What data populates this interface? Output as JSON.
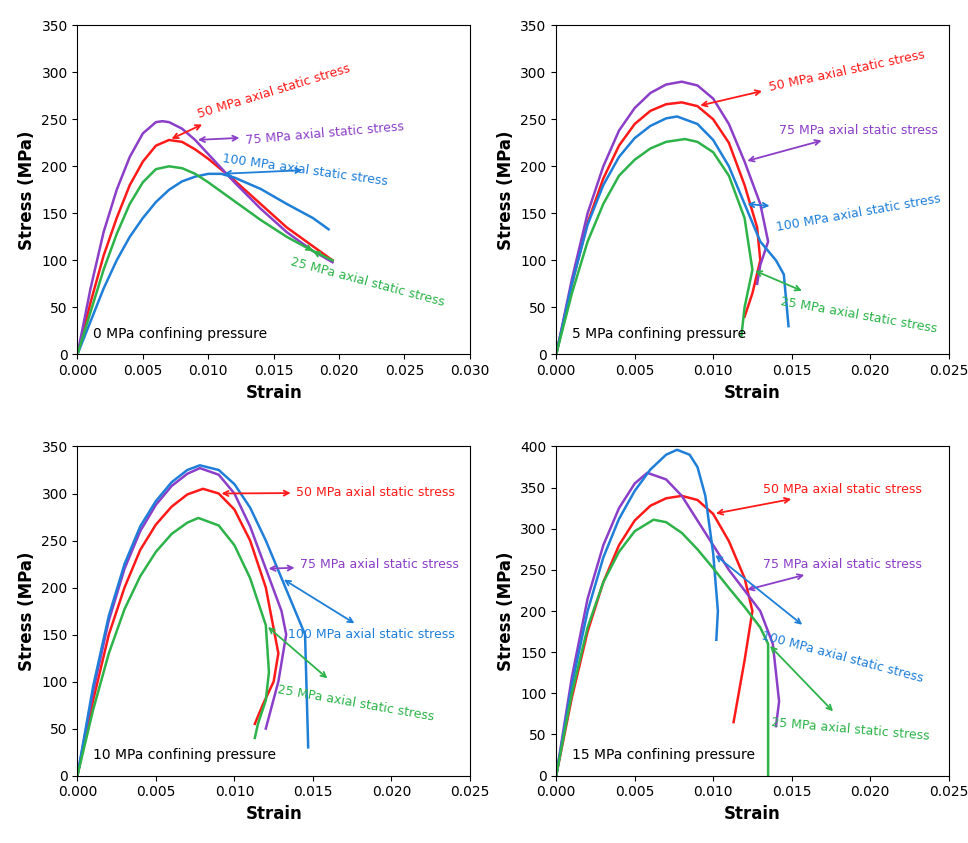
{
  "chart_data": [
    {
      "type": "line",
      "title": "0 MPa confining pressure",
      "x_label": "Strain",
      "y_label": "Stress (MPa)",
      "xlim": [
        0,
        0.03
      ],
      "xticks": [
        {
          "value": 0,
          "label": "0.000"
        },
        {
          "value": 0.005,
          "label": "0.005"
        },
        {
          "value": 0.01,
          "label": "0.010"
        },
        {
          "value": 0.015,
          "label": "0.015"
        },
        {
          "value": 0.02,
          "label": "0.020"
        },
        {
          "value": 0.025,
          "label": "0.025"
        },
        {
          "value": 0.03,
          "label": "0.030"
        }
      ],
      "ylim": [
        0,
        350
      ],
      "yticks": [
        0,
        50,
        100,
        150,
        200,
        250,
        300,
        350
      ],
      "series": [
        {
          "name": "50 MPa axial static stress",
          "color": "#ff1a1a",
          "x": [
            0,
            0.001,
            0.002,
            0.003,
            0.004,
            0.005,
            0.006,
            0.007,
            0.008,
            0.009,
            0.01,
            0.012,
            0.014,
            0.016,
            0.018,
            0.0195
          ],
          "values": [
            0,
            55,
            105,
            145,
            180,
            205,
            222,
            228,
            226,
            218,
            208,
            185,
            160,
            135,
            115,
            100
          ]
        },
        {
          "name": "75 MPa axial static stress",
          "color": "#8b3fc8",
          "x": [
            0,
            0.001,
            0.002,
            0.003,
            0.004,
            0.005,
            0.006,
            0.0065,
            0.007,
            0.008,
            0.009,
            0.01,
            0.012,
            0.014,
            0.016,
            0.018,
            0.0195
          ],
          "values": [
            0,
            70,
            130,
            175,
            210,
            235,
            247,
            248,
            247,
            240,
            228,
            213,
            183,
            155,
            130,
            110,
            98
          ]
        },
        {
          "name": "100 MPa axial static stress",
          "color": "#1f7fd8",
          "x": [
            0,
            0.001,
            0.002,
            0.003,
            0.004,
            0.005,
            0.006,
            0.007,
            0.008,
            0.009,
            0.01,
            0.011,
            0.012,
            0.014,
            0.016,
            0.018,
            0.0192
          ],
          "values": [
            0,
            35,
            70,
            100,
            125,
            145,
            162,
            175,
            184,
            189,
            192,
            192,
            188,
            176,
            160,
            145,
            133
          ]
        },
        {
          "name": "25 MPa axial static stress",
          "color": "#2db34a",
          "x": [
            0,
            0.001,
            0.002,
            0.003,
            0.004,
            0.005,
            0.006,
            0.007,
            0.008,
            0.009,
            0.01,
            0.012,
            0.014,
            0.016,
            0.018,
            0.0195
          ],
          "values": [
            0,
            45,
            90,
            128,
            160,
            183,
            197,
            200,
            198,
            192,
            183,
            163,
            143,
            125,
            110,
            100
          ]
        }
      ]
    },
    {
      "type": "line",
      "title": "5 MPa confining pressure",
      "x_label": "Strain",
      "y_label": "Stress (MPa)",
      "xlim": [
        0,
        0.025
      ],
      "xticks": [
        {
          "value": 0,
          "label": "0.000"
        },
        {
          "value": 0.005,
          "label": "0.005"
        },
        {
          "value": 0.01,
          "label": "0.010"
        },
        {
          "value": 0.015,
          "label": "0.015"
        },
        {
          "value": 0.02,
          "label": "0.020"
        },
        {
          "value": 0.025,
          "label": "0.025"
        }
      ],
      "ylim": [
        0,
        350
      ],
      "yticks": [
        0,
        50,
        100,
        150,
        200,
        250,
        300,
        350
      ],
      "series": [
        {
          "name": "50 MPa axial static stress",
          "color": "#ff1a1a",
          "x": [
            0,
            0.001,
            0.002,
            0.003,
            0.004,
            0.005,
            0.006,
            0.007,
            0.008,
            0.009,
            0.01,
            0.011,
            0.012,
            0.0128,
            0.013,
            0.0125,
            0.012
          ],
          "values": [
            0,
            75,
            140,
            187,
            222,
            245,
            259,
            266,
            268,
            264,
            250,
            225,
            180,
            135,
            100,
            65,
            40
          ]
        },
        {
          "name": "75 MPa axial static stress",
          "color": "#8b3fc8",
          "x": [
            0,
            0.001,
            0.002,
            0.003,
            0.004,
            0.005,
            0.006,
            0.007,
            0.008,
            0.009,
            0.01,
            0.011,
            0.012,
            0.013,
            0.0135,
            0.013,
            0.0128
          ],
          "values": [
            0,
            80,
            150,
            200,
            238,
            262,
            278,
            287,
            290,
            286,
            272,
            245,
            205,
            160,
            120,
            95,
            75
          ]
        },
        {
          "name": "100 MPa axial static stress",
          "color": "#1f7fd8",
          "x": [
            0,
            0.001,
            0.002,
            0.003,
            0.004,
            0.005,
            0.006,
            0.007,
            0.0077,
            0.009,
            0.01,
            0.011,
            0.012,
            0.013,
            0.014,
            0.0145,
            0.0148
          ],
          "values": [
            0,
            75,
            138,
            180,
            210,
            230,
            243,
            251,
            253,
            245,
            228,
            200,
            160,
            120,
            100,
            85,
            30
          ]
        },
        {
          "name": "25 MPa axial static stress",
          "color": "#2db34a",
          "x": [
            0,
            0.001,
            0.002,
            0.003,
            0.004,
            0.005,
            0.006,
            0.007,
            0.0082,
            0.009,
            0.01,
            0.011,
            0.012,
            0.0125,
            0.012,
            0.0118
          ],
          "values": [
            0,
            65,
            120,
            160,
            190,
            207,
            219,
            226,
            229,
            226,
            215,
            190,
            145,
            90,
            50,
            20
          ]
        }
      ]
    },
    {
      "type": "line",
      "title": "10 MPa confining pressure",
      "x_label": "Strain",
      "y_label": "Stress (MPa)",
      "xlim": [
        0,
        0.025
      ],
      "xticks": [
        {
          "value": 0,
          "label": "0.000"
        },
        {
          "value": 0.005,
          "label": "0.005"
        },
        {
          "value": 0.01,
          "label": "0.010"
        },
        {
          "value": 0.015,
          "label": "0.015"
        },
        {
          "value": 0.02,
          "label": "0.020"
        },
        {
          "value": 0.025,
          "label": "0.025"
        }
      ],
      "ylim": [
        0,
        350
      ],
      "yticks": [
        0,
        50,
        100,
        150,
        200,
        250,
        300,
        350
      ],
      "series": [
        {
          "name": "50 MPa axial static stress",
          "color": "#ff1a1a",
          "x": [
            0,
            0.001,
            0.002,
            0.003,
            0.004,
            0.005,
            0.006,
            0.007,
            0.008,
            0.009,
            0.01,
            0.011,
            0.012,
            0.0128,
            0.0125,
            0.0118,
            0.0113
          ],
          "values": [
            0,
            80,
            150,
            200,
            240,
            267,
            286,
            299,
            305,
            300,
            283,
            250,
            200,
            130,
            100,
            75,
            55
          ]
        },
        {
          "name": "75 MPa axial static stress",
          "color": "#8b3fc8",
          "x": [
            0,
            0.001,
            0.002,
            0.003,
            0.004,
            0.005,
            0.006,
            0.007,
            0.0078,
            0.009,
            0.01,
            0.011,
            0.012,
            0.013,
            0.0133,
            0.0128,
            0.012
          ],
          "values": [
            0,
            90,
            165,
            220,
            260,
            288,
            308,
            321,
            327,
            320,
            300,
            265,
            220,
            175,
            150,
            100,
            50
          ]
        },
        {
          "name": "100 MPa axial static stress",
          "color": "#1f7fd8",
          "x": [
            0,
            0.001,
            0.002,
            0.003,
            0.004,
            0.005,
            0.006,
            0.007,
            0.0078,
            0.009,
            0.01,
            0.011,
            0.012,
            0.013,
            0.014,
            0.0145,
            0.0147
          ],
          "values": [
            0,
            95,
            170,
            225,
            265,
            292,
            312,
            325,
            330,
            325,
            310,
            285,
            250,
            210,
            170,
            150,
            30
          ]
        },
        {
          "name": "25 MPa axial static stress",
          "color": "#2db34a",
          "x": [
            0,
            0.001,
            0.002,
            0.003,
            0.004,
            0.005,
            0.006,
            0.007,
            0.0077,
            0.009,
            0.01,
            0.011,
            0.012,
            0.0122,
            0.012,
            0.0115,
            0.0113
          ],
          "values": [
            0,
            70,
            130,
            177,
            212,
            238,
            257,
            269,
            274,
            266,
            245,
            210,
            160,
            110,
            80,
            55,
            40
          ]
        }
      ]
    },
    {
      "type": "line",
      "title": "15 MPa confining pressure",
      "x_label": "Strain",
      "y_label": "Stress (MPa)",
      "xlim": [
        0,
        0.025
      ],
      "xticks": [
        {
          "value": 0,
          "label": "0.000"
        },
        {
          "value": 0.005,
          "label": "0.005"
        },
        {
          "value": 0.01,
          "label": "0.010"
        },
        {
          "value": 0.015,
          "label": "0.015"
        },
        {
          "value": 0.02,
          "label": "0.020"
        },
        {
          "value": 0.025,
          "label": "0.025"
        }
      ],
      "ylim": [
        0,
        400
      ],
      "yticks": [
        0,
        50,
        100,
        150,
        200,
        250,
        300,
        350,
        400
      ],
      "series": [
        {
          "name": "50 MPa axial static stress",
          "color": "#ff1a1a",
          "x": [
            0,
            0.001,
            0.002,
            0.003,
            0.004,
            0.005,
            0.006,
            0.007,
            0.008,
            0.009,
            0.01,
            0.011,
            0.012,
            0.0125,
            0.012,
            0.0113
          ],
          "values": [
            0,
            95,
            175,
            235,
            280,
            310,
            328,
            337,
            340,
            335,
            318,
            285,
            240,
            200,
            140,
            65
          ]
        },
        {
          "name": "75 MPa axial static stress",
          "color": "#8b3fc8",
          "x": [
            0,
            0.001,
            0.002,
            0.003,
            0.004,
            0.005,
            0.0058,
            0.007,
            0.008,
            0.009,
            0.01,
            0.011,
            0.012,
            0.013,
            0.0138,
            0.0142,
            0.014
          ],
          "values": [
            0,
            120,
            215,
            280,
            325,
            355,
            368,
            360,
            340,
            310,
            280,
            250,
            225,
            200,
            160,
            90,
            60
          ]
        },
        {
          "name": "100 MPa axial static stress",
          "color": "#1f7fd8",
          "x": [
            0,
            0.001,
            0.002,
            0.003,
            0.004,
            0.005,
            0.006,
            0.007,
            0.0077,
            0.0085,
            0.009,
            0.0095,
            0.01,
            0.0103,
            0.0102
          ],
          "values": [
            0,
            110,
            200,
            265,
            312,
            346,
            372,
            390,
            396,
            390,
            375,
            340,
            270,
            200,
            165
          ]
        },
        {
          "name": "25 MPa axial static stress",
          "color": "#2db34a",
          "x": [
            0,
            0.001,
            0.002,
            0.003,
            0.004,
            0.005,
            0.0062,
            0.007,
            0.008,
            0.009,
            0.01,
            0.011,
            0.012,
            0.013,
            0.0135,
            0.0135
          ],
          "values": [
            0,
            100,
            180,
            235,
            272,
            297,
            311,
            308,
            295,
            275,
            252,
            228,
            205,
            180,
            160,
            0
          ]
        }
      ]
    }
  ]
}
